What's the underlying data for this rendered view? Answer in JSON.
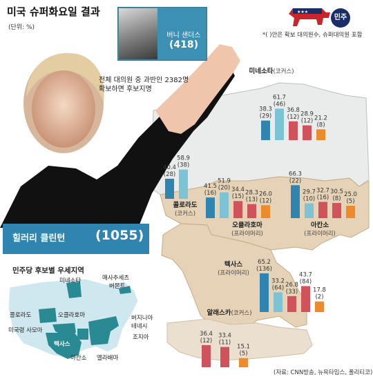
{
  "title": "미국 슈퍼화요일 결과",
  "unit": "(단위: %)",
  "note": "*( )안은 확보 대의원수, 슈퍼대의원 포함",
  "party_label": "민주",
  "quota_line1": "전체 대의원 중 과반인 2382명",
  "quota_line2": "확보하면 후보지명",
  "colors": {
    "clinton": "#2f85b0",
    "clinton_light": "#7cc3d6",
    "sanders": "#d0525a",
    "sanders_light": "#ed8a2c",
    "map_bg": "#e6d3b7",
    "map_mini": "#cfe7ee",
    "map_mini_win": "#2a8a94"
  },
  "candidates": {
    "sanders": {
      "name": "버니 샌더스",
      "total": "(418)"
    },
    "clinton": {
      "name": "힐러리 클린턴",
      "total": "(1055)"
    }
  },
  "chart_data": {
    "type": "bar",
    "note": "각 주별로 4개 막대: 클린턴(득표율), 샌더스(득표율) — 괄호 안은 확보 대의원수",
    "states": [
      {
        "id": "minnesota",
        "name": "미네소타",
        "method": "(코커스)",
        "values": [
          38.3,
          61.7,
          36.8,
          28.9,
          21.2
        ],
        "delegates": [
          "(29)",
          "(46)",
          "(12)",
          "(12)",
          "(8)"
        ]
      },
      {
        "id": "colorado",
        "name": "콜로라도",
        "method": "(코커스)",
        "values": [
          40.4,
          58.9
        ],
        "delegates": [
          "(28)",
          "(38)"
        ]
      },
      {
        "id": "oklahoma",
        "name": "오클라호마",
        "method": "(프라이머리)",
        "values": [
          41.5,
          51.9,
          34.4,
          28.3,
          26.0
        ],
        "delegates": [
          "(16)",
          "(20)",
          "(15)",
          "(13)",
          "(12)"
        ]
      },
      {
        "id": "arkansas",
        "name": "아칸소",
        "method": "(프라이머리)",
        "values": [
          66.3,
          29.7,
          32.7,
          30.5,
          25.0
        ],
        "delegates": [
          "(22)",
          "(10)",
          "(16)",
          "(8)",
          "(5)"
        ]
      },
      {
        "id": "texas",
        "name": "텍사스",
        "method": "(프라이머리)",
        "values": [
          65.2,
          33.2,
          26.8,
          43.7,
          17.8
        ],
        "delegates": [
          "(136)",
          "(64)",
          "(33)",
          "(84)",
          "(2)"
        ]
      },
      {
        "id": "alaska",
        "name": "알래스카",
        "method": "(코커스)",
        "values": [
          36.4,
          33.4,
          15.1
        ],
        "delegates": [
          "(12)",
          "(11)",
          "(5)"
        ]
      }
    ]
  },
  "map_title": "민주당 후보별 우세지역",
  "mini_map_labels": [
    {
      "text": "미네소타"
    },
    {
      "text": "매사추세츠"
    },
    {
      "text": "버몬트"
    },
    {
      "text": "콜로라도"
    },
    {
      "text": "오클라호마"
    },
    {
      "text": "버지니아"
    },
    {
      "text": "테네시"
    },
    {
      "text": "미국령 사모아"
    },
    {
      "text": "텍사스"
    },
    {
      "text": "조지아"
    },
    {
      "text": "아칸소"
    },
    {
      "text": "앨라배마"
    }
  ],
  "footer": "(자료: CNN방송, 뉴욕타임스, 폴리티코)"
}
